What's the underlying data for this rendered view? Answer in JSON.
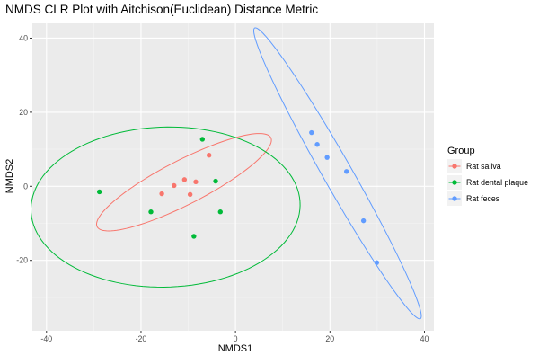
{
  "chart_data": {
    "type": "scatter",
    "title": "NMDS CLR Plot with Aitchison(Euclidean) Distance Metric",
    "xlabel": "NMDS1",
    "ylabel": "NMDS2",
    "xlim": [
      -43,
      42
    ],
    "ylim": [
      -39,
      44
    ],
    "xticks": [
      -40,
      -20,
      0,
      20,
      40
    ],
    "yticks": [
      -20,
      0,
      20,
      40
    ],
    "grid": true,
    "legend": {
      "title": "Group",
      "position": "right"
    },
    "series": [
      {
        "name": "Rat saliva",
        "color": "#F8766D",
        "points": [
          {
            "x": -15.6,
            "y": -2.0
          },
          {
            "x": -13.0,
            "y": 0.2
          },
          {
            "x": -10.8,
            "y": 1.8
          },
          {
            "x": -9.6,
            "y": -2.2
          },
          {
            "x": -8.4,
            "y": 1.2
          },
          {
            "x": -5.6,
            "y": 8.4
          }
        ],
        "ellipse": {
          "cx": -10.9,
          "cy": 1.1,
          "a": 22.0,
          "b": 5.6,
          "angle_deg": 34
        }
      },
      {
        "name": "Rat dental plaque",
        "color": "#00BA38",
        "points": [
          {
            "x": -28.8,
            "y": -1.5
          },
          {
            "x": -17.9,
            "y": -6.9
          },
          {
            "x": -8.8,
            "y": -13.5
          },
          {
            "x": -7.0,
            "y": 12.7
          },
          {
            "x": -4.2,
            "y": 1.4
          },
          {
            "x": -3.2,
            "y": -6.9
          }
        ],
        "ellipse": {
          "cx": -14.8,
          "cy": -5.6,
          "a": 28.5,
          "b": 21.6,
          "angle_deg": 3
        }
      },
      {
        "name": "Rat feces",
        "color": "#619CFF",
        "points": [
          {
            "x": 16.1,
            "y": 14.5
          },
          {
            "x": 17.3,
            "y": 11.3
          },
          {
            "x": 19.4,
            "y": 7.8
          },
          {
            "x": 23.5,
            "y": 4.0
          },
          {
            "x": 27.1,
            "y": -9.3
          },
          {
            "x": 29.9,
            "y": -20.6
          }
        ],
        "ellipse": {
          "cx": 21.6,
          "cy": 3.5,
          "a": 43.0,
          "b": 3.2,
          "angle_deg": -66
        }
      }
    ]
  }
}
